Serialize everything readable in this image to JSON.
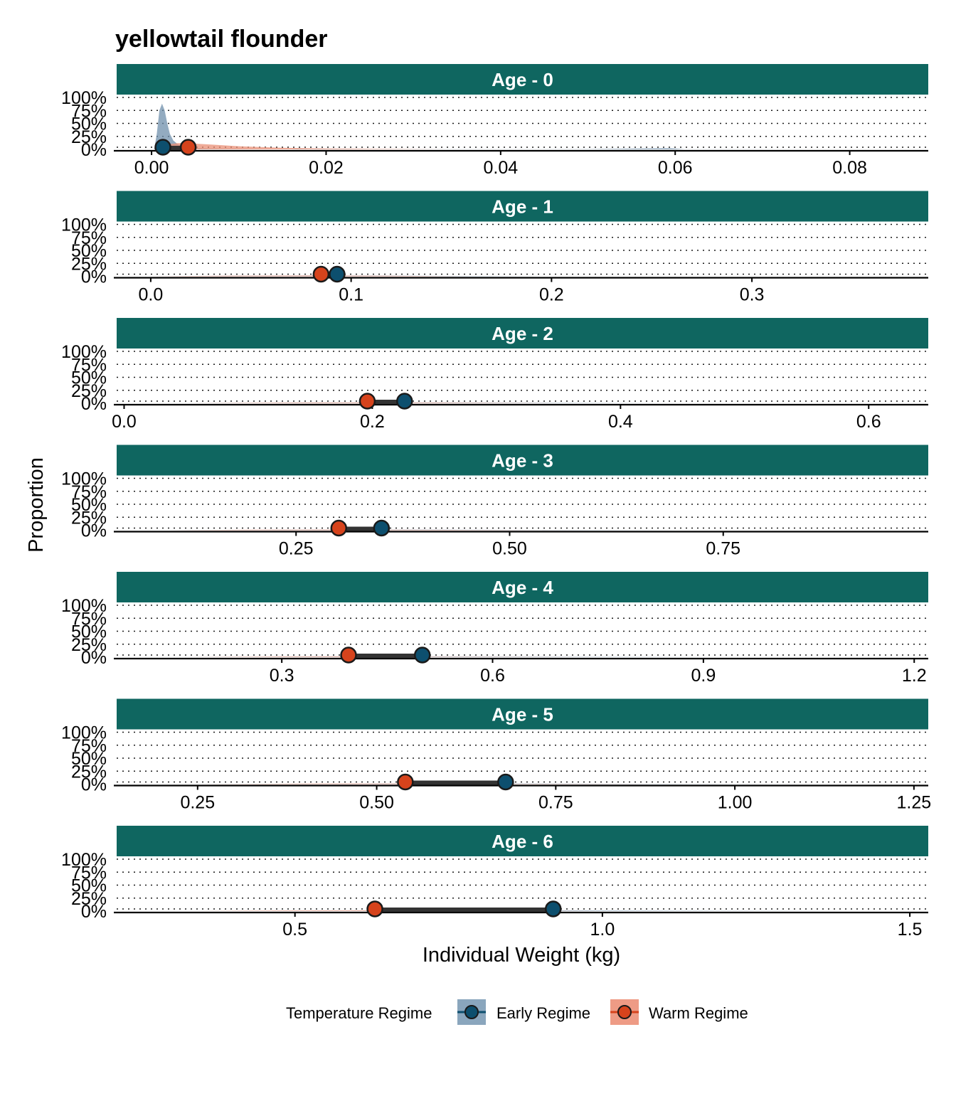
{
  "chart_data": {
    "type": "area",
    "title": "yellowtail flounder",
    "xlabel": "Individual Weight (kg)",
    "ylabel": "Proportion",
    "y_ticks": [
      "0%",
      "25%",
      "50%",
      "75%",
      "100%"
    ],
    "legend": {
      "title": "Temperature Regime",
      "position": "bottom",
      "items": [
        {
          "name": "Early Regime",
          "fill": "#8aa6bd",
          "point": "#0d4f6e"
        },
        {
          "name": "Warm Regime",
          "fill": "#ee9b85",
          "point": "#d6431c"
        }
      ]
    },
    "colors": {
      "strip_fill": "#0f6660",
      "strip_text": "#ffffff",
      "early_density": "#6f8fab",
      "warm_density": "#ea8f75",
      "early_point": "#0d4f6e",
      "warm_point": "#d6431c",
      "segment": "#333333"
    },
    "panels": [
      {
        "strip": "Age - 0",
        "xlim": [
          -0.004,
          0.089
        ],
        "x_ticks": [
          0.0,
          0.02,
          0.04,
          0.06,
          0.08
        ],
        "x_tick_labels": [
          "0.00",
          "0.02",
          "0.04",
          "0.06",
          "0.08"
        ],
        "early_mean": 0.0013,
        "warm_mean": 0.0042,
        "early_density": {
          "x": [
            0.0003,
            0.0006,
            0.0009,
            0.0012,
            0.0015,
            0.0018,
            0.0021,
            0.0025,
            0.003,
            0.0035,
            0.0045,
            0.006,
            0.008,
            0.012,
            0.016,
            0.017,
            0.018,
            0.019,
            0.025,
            0.05,
            0.0585,
            0.0595,
            0.061,
            0.085
          ],
          "y": [
            0.0,
            0.3,
            0.75,
            0.88,
            0.75,
            0.5,
            0.3,
            0.17,
            0.1,
            0.06,
            0.03,
            0.015,
            0.008,
            0.003,
            0.002,
            0.015,
            0.002,
            0.01,
            0.002,
            0.003,
            0.02,
            0.02,
            0.002,
            0.0
          ]
        },
        "warm_density": {
          "x": [
            0.0005,
            0.001,
            0.002,
            0.003,
            0.004,
            0.005,
            0.007,
            0.01,
            0.015,
            0.02,
            0.025,
            0.03,
            0.034
          ],
          "y": [
            0.0,
            0.05,
            0.1,
            0.12,
            0.12,
            0.11,
            0.09,
            0.06,
            0.03,
            0.015,
            0.008,
            0.004,
            0.0
          ]
        }
      },
      {
        "strip": "Age - 1",
        "xlim": [
          -0.017,
          0.388
        ],
        "x_ticks": [
          0.0,
          0.1,
          0.2,
          0.3
        ],
        "x_tick_labels": [
          "0.0",
          "0.1",
          "0.2",
          "0.3"
        ],
        "early_mean": 0.093,
        "warm_mean": 0.085,
        "early_density": {
          "x": [
            0.0,
            0.04,
            0.08,
            0.12,
            0.16,
            0.2
          ],
          "y": [
            0.0,
            0.01,
            0.015,
            0.012,
            0.006,
            0.0
          ]
        },
        "warm_density": {
          "x": [
            0.0,
            0.04,
            0.08,
            0.12,
            0.16
          ],
          "y": [
            0.0,
            0.012,
            0.015,
            0.01,
            0.0
          ]
        }
      },
      {
        "strip": "Age - 2",
        "xlim": [
          -0.006,
          0.648
        ],
        "x_ticks": [
          0.0,
          0.2,
          0.4,
          0.6
        ],
        "x_tick_labels": [
          "0.0",
          "0.2",
          "0.4",
          "0.6"
        ],
        "early_mean": 0.226,
        "warm_mean": 0.196,
        "early_density": {
          "x": [
            0.05,
            0.15,
            0.25,
            0.35,
            0.45
          ],
          "y": [
            0.0,
            0.01,
            0.012,
            0.006,
            0.0
          ]
        },
        "warm_density": {
          "x": [
            0.05,
            0.15,
            0.25,
            0.35
          ],
          "y": [
            0.0,
            0.012,
            0.01,
            0.0
          ]
        }
      },
      {
        "strip": "Age - 3",
        "xlim": [
          0.04,
          0.99
        ],
        "x_ticks": [
          0.25,
          0.5,
          0.75
        ],
        "x_tick_labels": [
          "0.25",
          "0.50",
          "0.75"
        ],
        "early_mean": 0.35,
        "warm_mean": 0.3,
        "early_density": {
          "x": [
            0.1,
            0.25,
            0.4,
            0.55,
            0.7
          ],
          "y": [
            0.0,
            0.01,
            0.012,
            0.006,
            0.0
          ]
        },
        "warm_density": {
          "x": [
            0.1,
            0.2,
            0.3,
            0.45,
            0.6
          ],
          "y": [
            0.0,
            0.01,
            0.012,
            0.006,
            0.0
          ]
        }
      },
      {
        "strip": "Age - 4",
        "xlim": [
          0.065,
          1.22
        ],
        "x_ticks": [
          0.3,
          0.6,
          0.9,
          1.2
        ],
        "x_tick_labels": [
          "0.3",
          "0.6",
          "0.9",
          "1.2"
        ],
        "early_mean": 0.5,
        "warm_mean": 0.395,
        "early_density": {
          "x": [
            0.15,
            0.35,
            0.5,
            0.7,
            0.95
          ],
          "y": [
            0.0,
            0.01,
            0.012,
            0.006,
            0.0
          ]
        },
        "warm_density": {
          "x": [
            0.15,
            0.3,
            0.4,
            0.55,
            0.75
          ],
          "y": [
            0.0,
            0.01,
            0.012,
            0.006,
            0.0
          ]
        }
      },
      {
        "strip": "Age - 5",
        "xlim": [
          0.137,
          1.27
        ],
        "x_ticks": [
          0.25,
          0.5,
          0.75,
          1.0,
          1.25
        ],
        "x_tick_labels": [
          "0.25",
          "0.50",
          "0.75",
          "1.00",
          "1.25"
        ],
        "early_mean": 0.68,
        "warm_mean": 0.54,
        "early_density": {
          "x": [
            0.3,
            0.5,
            0.68,
            0.85,
            1.1
          ],
          "y": [
            0.0,
            0.01,
            0.012,
            0.006,
            0.0
          ]
        },
        "warm_density": {
          "x": [
            0.25,
            0.4,
            0.54,
            0.7,
            0.9
          ],
          "y": [
            0.0,
            0.01,
            0.012,
            0.006,
            0.0
          ]
        }
      },
      {
        "strip": "Age - 6",
        "xlim": [
          0.21,
          1.53
        ],
        "x_ticks": [
          0.5,
          1.0,
          1.5
        ],
        "x_tick_labels": [
          "0.5",
          "1.0",
          "1.5"
        ],
        "early_mean": 0.92,
        "warm_mean": 0.63,
        "early_density": {
          "x": [
            0.4,
            0.7,
            0.92,
            1.1,
            1.4
          ],
          "y": [
            0.0,
            0.01,
            0.012,
            0.006,
            0.0
          ]
        },
        "warm_density": {
          "x": [
            0.3,
            0.5,
            0.63,
            0.8,
            1.0
          ],
          "y": [
            0.0,
            0.01,
            0.012,
            0.006,
            0.0
          ]
        }
      }
    ]
  }
}
